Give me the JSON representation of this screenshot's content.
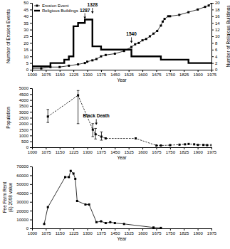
{
  "chart_data": [
    {
      "type": "line",
      "xlabel": "Year",
      "ylabel": "Number of Erosion Events",
      "y2label": "Number of Religious Buildings",
      "xlim": [
        1000,
        1975
      ],
      "xticks": [
        1000,
        1075,
        1150,
        1225,
        1300,
        1375,
        1450,
        1525,
        1600,
        1675,
        1750,
        1825,
        1900,
        1975
      ],
      "ylim": [
        0,
        50
      ],
      "yticks": [
        0,
        5,
        10,
        15,
        20,
        25,
        30,
        35,
        40,
        45,
        50
      ],
      "y2lim": [
        0,
        20
      ],
      "y2ticks": [
        0,
        2,
        4,
        6,
        8,
        10,
        12,
        14,
        16,
        18,
        20
      ],
      "legend": "upper left",
      "series": [
        {
          "name": "Erosion Event",
          "color": "#000000",
          "marker": "square",
          "line_style": "solid",
          "x": [
            1000,
            1050,
            1100,
            1150,
            1200,
            1250,
            1287,
            1300,
            1328,
            1350,
            1375,
            1400,
            1450,
            1500,
            1540,
            1560,
            1580,
            1600,
            1620,
            1640,
            1660,
            1680,
            1700,
            1710,
            1720,
            1740,
            1750,
            1800,
            1850,
            1900,
            1940,
            1960,
            1975
          ],
          "values": [
            1,
            1,
            2,
            2,
            3,
            4,
            5,
            6,
            7,
            8,
            10,
            11,
            12,
            14,
            17,
            19,
            20,
            22,
            23,
            25,
            27,
            29,
            33,
            36,
            38,
            40,
            40,
            41,
            43,
            45,
            47,
            48,
            50
          ]
        },
        {
          "name": "Religious Buildings",
          "color": "#000000",
          "line_style": "step",
          "axis": "y2",
          "x": [
            1000,
            1100,
            1175,
            1200,
            1225,
            1250,
            1287,
            1328,
            1375,
            1540,
            1600,
            1700,
            1850,
            1975
          ],
          "values": [
            1,
            2,
            3,
            4,
            13,
            14,
            15,
            7,
            6,
            4,
            4,
            3,
            2,
            2
          ]
        }
      ],
      "annotations": [
        {
          "text": "1287",
          "x": 1287,
          "y": 38
        },
        {
          "text": "1328",
          "x": 1328,
          "y": 42
        },
        {
          "text": "1540",
          "x": 1540,
          "y": 20
        }
      ]
    },
    {
      "type": "line",
      "xlabel": "Year",
      "ylabel": "Population",
      "xlim": [
        1000,
        1975
      ],
      "xticks": [
        1000,
        1075,
        1150,
        1225,
        1300,
        1375,
        1450,
        1525,
        1600,
        1675,
        1750,
        1825,
        1900,
        1975
      ],
      "ylim": [
        0,
        5000
      ],
      "yticks": [
        0,
        500,
        1000,
        1500,
        2000,
        2500,
        3000,
        3500,
        4000,
        4500,
        5000
      ],
      "color": "#000000",
      "marker": "square",
      "line_style": "dashed",
      "x": [
        1086,
        1250,
        1330,
        1345,
        1377,
        1400,
        1563,
        1676,
        1700,
        1750,
        1801,
        1831,
        1851,
        1881,
        1901,
        1931,
        1951,
        1975
      ],
      "values": [
        2600,
        4400,
        1500,
        1100,
        900,
        750,
        750,
        150,
        150,
        180,
        220,
        250,
        280,
        250,
        200,
        200,
        180,
        180
      ],
      "error_lower": [
        2100,
        2000,
        900,
        700,
        600,
        null,
        null,
        null,
        null,
        null,
        null,
        null,
        null,
        null,
        null,
        null,
        null,
        null
      ],
      "error_upper": [
        3200,
        4800,
        2000,
        1600,
        1300,
        null,
        null,
        null,
        null,
        null,
        null,
        null,
        null,
        null,
        null,
        null,
        null,
        null
      ],
      "annotations": [
        {
          "text": "Black Death",
          "x": 1349,
          "y": 1900
        }
      ]
    },
    {
      "type": "line",
      "xlabel": "Year",
      "ylabel": [
        "Fee Farm Rent",
        "(£) 2008 value"
      ],
      "xlim": [
        1000,
        1975
      ],
      "xticks": [
        1000,
        1075,
        1150,
        1225,
        1300,
        1375,
        1450,
        1525,
        1600,
        1675,
        1750,
        1825,
        1900,
        1975
      ],
      "ylim": [
        0,
        70000
      ],
      "yticks": [
        0,
        10000,
        20000,
        30000,
        40000,
        50000,
        60000,
        70000
      ],
      "color": "#000000",
      "marker": "square",
      "line_style": "solid",
      "x": [
        1066,
        1086,
        1180,
        1200,
        1210,
        1225,
        1235,
        1245,
        1290,
        1310,
        1350,
        1375,
        1400,
        1425,
        1450,
        1500,
        1660,
        1700
      ],
      "values": [
        5000,
        24000,
        58000,
        58000,
        65000,
        62000,
        56000,
        31000,
        27000,
        27000,
        7000,
        8000,
        6000,
        7000,
        6000,
        5000,
        1000,
        500
      ]
    }
  ]
}
